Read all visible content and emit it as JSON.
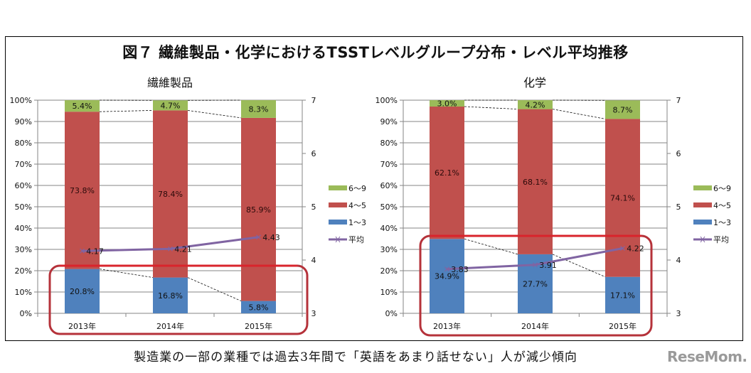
{
  "title": "図７ 繊維製品・化学におけるTSSTレベルグループ分布・レベル平均推移",
  "caption": "製造業の一部の業種では過去3年間で「英語をあまり話せない」人が減少傾向",
  "logo_text": "ReseMom.",
  "colors": {
    "group_6_9": "#9bbb59",
    "group_4_5": "#c0504d",
    "group_1_3": "#4f81bd",
    "average": "#8064a2",
    "highlight_box": "#b5323a",
    "grid": "#868686"
  },
  "chart_data": [
    {
      "type": "bar",
      "stacked": true,
      "title": "繊維製品",
      "categories": [
        "2013年",
        "2014年",
        "2015年"
      ],
      "series": [
        {
          "name": "1〜3",
          "values": [
            20.8,
            16.8,
            5.8
          ],
          "labels": [
            "20.8%",
            "16.8%",
            "5.8%"
          ]
        },
        {
          "name": "4〜5",
          "values": [
            73.8,
            78.4,
            85.9
          ],
          "labels": [
            "73.8%",
            "78.4%",
            "85.9%"
          ]
        },
        {
          "name": "6〜9",
          "values": [
            5.4,
            4.7,
            8.3
          ],
          "labels": [
            "5.4%",
            "4.7%",
            "8.3%"
          ]
        }
      ],
      "line_series": {
        "name": "平均",
        "values": [
          4.17,
          4.21,
          4.43
        ],
        "labels": [
          "4.17",
          "4.21",
          "4.43"
        ],
        "axis": "secondary"
      },
      "ylim": [
        0,
        100
      ],
      "y_ticks": [
        "0%",
        "10%",
        "20%",
        "30%",
        "40%",
        "50%",
        "60%",
        "70%",
        "80%",
        "90%",
        "100%"
      ],
      "y2lim": [
        3,
        7
      ],
      "y2_ticks": [
        "3",
        "4",
        "5",
        "6",
        "7"
      ],
      "legend": [
        "6〜9",
        "4〜5",
        "1〜3",
        "平均"
      ],
      "legend_position": "right",
      "grid": true
    },
    {
      "type": "bar",
      "stacked": true,
      "title": "化学",
      "categories": [
        "2013年",
        "2014年",
        "2015年"
      ],
      "series": [
        {
          "name": "1〜3",
          "values": [
            34.9,
            27.7,
            17.1
          ],
          "labels": [
            "34.9%",
            "27.7%",
            "17.1%"
          ]
        },
        {
          "name": "4〜5",
          "values": [
            62.1,
            68.1,
            74.1
          ],
          "labels": [
            "62.1%",
            "68.1%",
            "74.1%"
          ]
        },
        {
          "name": "6〜9",
          "values": [
            3.0,
            4.2,
            8.7
          ],
          "labels": [
            "3.0%",
            "4.2%",
            "8.7%"
          ]
        }
      ],
      "line_series": {
        "name": "平均",
        "values": [
          3.83,
          3.91,
          4.22
        ],
        "labels": [
          "3.83",
          "3.91",
          "4.22"
        ],
        "axis": "secondary"
      },
      "ylim": [
        0,
        100
      ],
      "y_ticks": [
        "0%",
        "10%",
        "20%",
        "30%",
        "40%",
        "50%",
        "60%",
        "70%",
        "80%",
        "90%",
        "100%"
      ],
      "y2lim": [
        3,
        7
      ],
      "y2_ticks": [
        "3",
        "4",
        "5",
        "6",
        "7"
      ],
      "legend": [
        "6〜9",
        "4〜5",
        "1〜3",
        "平均"
      ],
      "legend_position": "right",
      "grid": true
    }
  ]
}
